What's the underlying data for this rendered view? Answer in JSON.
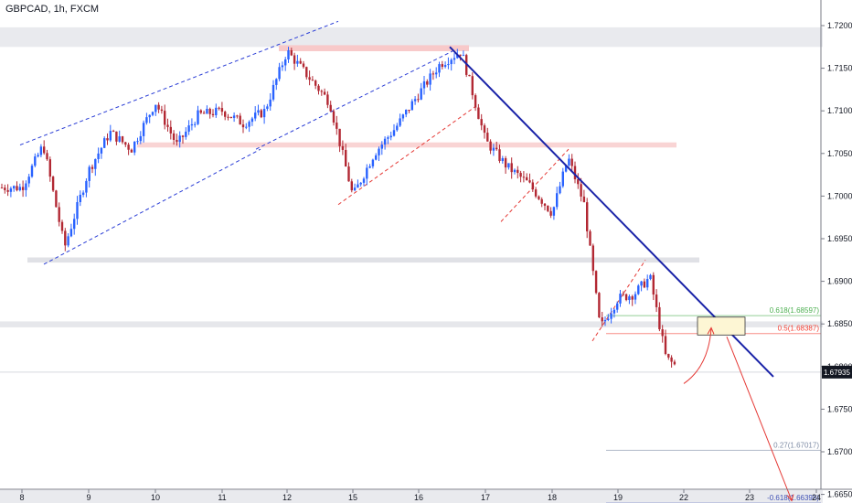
{
  "header": {
    "symbol_title": "GBPCAD, 1h, FXCM"
  },
  "price_tag": "1.67935",
  "fib_levels": [
    {
      "label": "0.618(1.68597)",
      "color": "#4caf50"
    },
    {
      "label": "0.5(1.68387)",
      "color": "#f44336"
    },
    {
      "label": "0.27(1.67017)",
      "color": "#7e8ca5"
    },
    {
      "label": "-0.618(1.66398)",
      "color": "#3f51b5"
    }
  ],
  "colors": {
    "up": "#2962ff",
    "down": "#b22833",
    "trendline": "#1a23a8",
    "channel": "#2b3ed6",
    "projection": "#e53935"
  },
  "chart_data": {
    "type": "candlestick",
    "title": "GBPCAD, 1h, FXCM",
    "x_tick_labels": [
      "8",
      "9",
      "10",
      "11",
      "12",
      "15",
      "16",
      "17",
      "18",
      "19",
      "22",
      "23",
      "24"
    ],
    "y_tick_labels": [
      "1.72000",
      "1.71500",
      "1.71000",
      "1.70500",
      "1.70000",
      "1.69500",
      "1.69000",
      "1.68500",
      "1.68000",
      "1.67500",
      "1.67000",
      "1.66500"
    ],
    "ylim": [
      1.6625,
      1.7225
    ],
    "last_price": 1.67935,
    "close_path": [
      [
        "8",
        1.701
      ],
      [
        "8",
        1.706
      ],
      [
        "8",
        1.694
      ],
      [
        "9",
        1.703
      ],
      [
        "9",
        1.7075
      ],
      [
        "9",
        1.7055
      ],
      [
        "10",
        1.711
      ],
      [
        "10",
        1.706
      ],
      [
        "10",
        1.7095
      ],
      [
        "11",
        1.71
      ],
      [
        "11",
        1.7085
      ],
      [
        "11",
        1.71
      ],
      [
        "12",
        1.717
      ],
      [
        "12",
        1.714
      ],
      [
        "12",
        1.711
      ],
      [
        "15",
        1.7
      ],
      [
        "15",
        1.705
      ],
      [
        "15",
        1.708
      ],
      [
        "16",
        1.712
      ],
      [
        "16",
        1.7155
      ],
      [
        "16",
        1.717
      ],
      [
        "17",
        1.7065
      ],
      [
        "17",
        1.7035
      ],
      [
        "17",
        1.7015
      ],
      [
        "18",
        1.698
      ],
      [
        "18",
        1.7045
      ],
      [
        "18",
        1.699
      ],
      [
        "18",
        1.6845
      ],
      [
        "19",
        1.688
      ],
      [
        "19",
        1.6885
      ],
      [
        "19",
        1.6905
      ],
      [
        "19",
        1.681
      ],
      [
        "22",
        1.6793
      ]
    ]
  }
}
